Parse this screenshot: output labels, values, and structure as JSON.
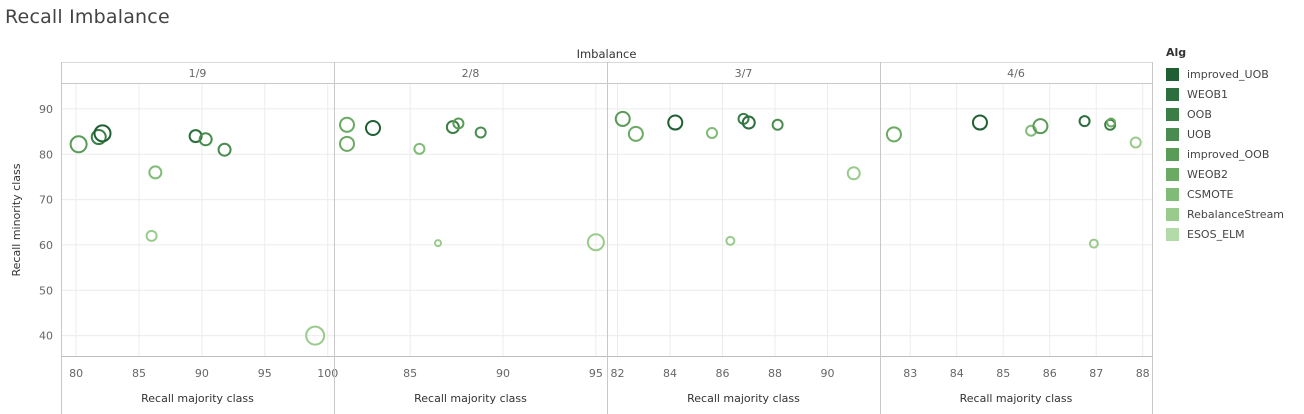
{
  "page": {
    "title": "Recall Imbalance"
  },
  "legend": {
    "title": "Alg",
    "items": [
      {
        "label": "improved_UOB",
        "color": "#1f5f33"
      },
      {
        "label": "WEOB1",
        "color": "#2c6e3d"
      },
      {
        "label": "OOB",
        "color": "#3a7d45"
      },
      {
        "label": "UOB",
        "color": "#4a8c4f"
      },
      {
        "label": "improved_OOB",
        "color": "#5a9b58"
      },
      {
        "label": "WEOB2",
        "color": "#6aaa63"
      },
      {
        "label": "CSMOTE",
        "color": "#80bb77"
      },
      {
        "label": "RebalanceStream",
        "color": "#98cb8c"
      },
      {
        "label": "ESOS_ELM",
        "color": "#b3dba7"
      }
    ]
  },
  "chart_data": {
    "type": "scatter",
    "title": "Imbalance",
    "xlabel": "Recall majority class",
    "ylabel": "Recall minority class",
    "ylim": [
      35.5,
      95.5
    ],
    "yticks": [
      40,
      50,
      60,
      70,
      80,
      90
    ],
    "panels": [
      {
        "label": "1/9",
        "xlim": [
          78.8,
          100.5
        ],
        "xticks": [
          80,
          85,
          90,
          95,
          100
        ],
        "points": [
          {
            "x": 80.2,
            "y": 82.2,
            "color": "#5a9b58",
            "size": 8
          },
          {
            "x": 81.8,
            "y": 83.8,
            "color": "#3a7d45",
            "size": 7
          },
          {
            "x": 82.1,
            "y": 84.6,
            "color": "#1f5f33",
            "size": 8
          },
          {
            "x": 89.5,
            "y": 84.0,
            "color": "#2c6e3d",
            "size": 6
          },
          {
            "x": 90.3,
            "y": 83.3,
            "color": "#4a8c4f",
            "size": 6
          },
          {
            "x": 91.8,
            "y": 81.0,
            "color": "#4a8c4f",
            "size": 6
          },
          {
            "x": 86.3,
            "y": 76.0,
            "color": "#80bb77",
            "size": 6
          },
          {
            "x": 86.0,
            "y": 62.0,
            "color": "#98cb8c",
            "size": 5
          },
          {
            "x": 99.0,
            "y": 40.0,
            "color": "#98cb8c",
            "size": 9
          }
        ]
      },
      {
        "label": "2/8",
        "xlim": [
          80.9,
          95.6
        ],
        "xticks": [
          85,
          90,
          95
        ],
        "points": [
          {
            "x": 81.6,
            "y": 86.5,
            "color": "#6aaa63",
            "size": 7
          },
          {
            "x": 81.6,
            "y": 82.3,
            "color": "#6aaa63",
            "size": 7
          },
          {
            "x": 83.0,
            "y": 85.8,
            "color": "#1f5f33",
            "size": 7
          },
          {
            "x": 87.3,
            "y": 86.0,
            "color": "#3a7d45",
            "size": 6
          },
          {
            "x": 87.6,
            "y": 86.8,
            "color": "#5a9b58",
            "size": 5
          },
          {
            "x": 88.8,
            "y": 84.8,
            "color": "#4a8c4f",
            "size": 5
          },
          {
            "x": 85.5,
            "y": 81.2,
            "color": "#80bb77",
            "size": 5
          },
          {
            "x": 86.5,
            "y": 60.4,
            "color": "#98cb8c",
            "size": 3
          },
          {
            "x": 95.0,
            "y": 60.6,
            "color": "#98cb8c",
            "size": 8
          }
        ]
      },
      {
        "label": "3/7",
        "xlim": [
          81.6,
          92.0
        ],
        "xticks": [
          82,
          84,
          86,
          88,
          90
        ],
        "points": [
          {
            "x": 82.2,
            "y": 87.8,
            "color": "#5a9b58",
            "size": 7
          },
          {
            "x": 82.7,
            "y": 84.5,
            "color": "#6aaa63",
            "size": 7
          },
          {
            "x": 84.2,
            "y": 87.0,
            "color": "#1f5f33",
            "size": 7
          },
          {
            "x": 86.8,
            "y": 87.8,
            "color": "#3a7d45",
            "size": 5
          },
          {
            "x": 87.0,
            "y": 87.0,
            "color": "#2c6e3d",
            "size": 6
          },
          {
            "x": 88.1,
            "y": 86.5,
            "color": "#4a8c4f",
            "size": 5
          },
          {
            "x": 85.6,
            "y": 84.7,
            "color": "#80bb77",
            "size": 5
          },
          {
            "x": 86.3,
            "y": 60.9,
            "color": "#98cb8c",
            "size": 4
          },
          {
            "x": 91.0,
            "y": 75.8,
            "color": "#98cb8c",
            "size": 6
          }
        ]
      },
      {
        "label": "4/6",
        "xlim": [
          82.35,
          88.2
        ],
        "xticks": [
          83,
          84,
          85,
          86,
          87,
          88
        ],
        "points": [
          {
            "x": 82.65,
            "y": 84.4,
            "color": "#6aaa63",
            "size": 7
          },
          {
            "x": 84.5,
            "y": 87.0,
            "color": "#1f5f33",
            "size": 7
          },
          {
            "x": 85.6,
            "y": 85.2,
            "color": "#80bb77",
            "size": 5
          },
          {
            "x": 85.8,
            "y": 86.2,
            "color": "#5a9b58",
            "size": 7
          },
          {
            "x": 86.75,
            "y": 87.3,
            "color": "#2c6e3d",
            "size": 5
          },
          {
            "x": 87.3,
            "y": 86.5,
            "color": "#3a7d45",
            "size": 5
          },
          {
            "x": 87.32,
            "y": 87.0,
            "color": "#6aaa63",
            "size": 4
          },
          {
            "x": 87.85,
            "y": 82.6,
            "color": "#98cb8c",
            "size": 5
          },
          {
            "x": 86.95,
            "y": 60.3,
            "color": "#98cb8c",
            "size": 4
          }
        ]
      }
    ],
    "grid": true,
    "legend_position": "right"
  }
}
